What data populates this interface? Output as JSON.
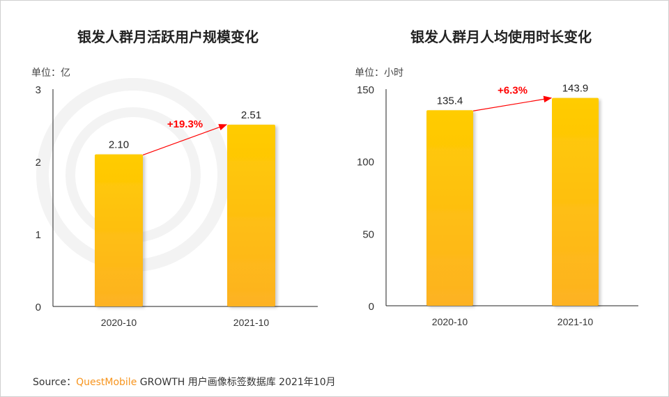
{
  "watermark": "QUEST MOBILE",
  "chart_data": [
    {
      "type": "bar",
      "title": "银发人群月活跃用户规模变化",
      "unit_label": "单位：亿",
      "categories": [
        "2020-10",
        "2021-10"
      ],
      "values": [
        2.1,
        2.51
      ],
      "value_labels": [
        "2.10",
        "2.51"
      ],
      "ylim": [
        0,
        3
      ],
      "yticks": [
        "0",
        "1",
        "2",
        "3"
      ],
      "growth_label": "+19.3%",
      "grid": false
    },
    {
      "type": "bar",
      "title": "银发人群月人均使用时长变化",
      "unit_label": "单位：小时",
      "categories": [
        "2020-10",
        "2021-10"
      ],
      "values": [
        135.4,
        143.9
      ],
      "value_labels": [
        "135.4",
        "143.9"
      ],
      "ylim": [
        0,
        150
      ],
      "yticks": [
        "0",
        "50",
        "100",
        "150"
      ],
      "growth_label": "+6.3%",
      "grid": false
    }
  ],
  "source": {
    "prefix": "Source：",
    "brand": "QuestMobile",
    "suffix": " GROWTH 用户画像标签数据库 2021年10月"
  },
  "colors": {
    "bar_top": "#ffcc00",
    "bar_bottom": "#fdb222",
    "arrow": "#ff0000",
    "axis": "#222222"
  }
}
